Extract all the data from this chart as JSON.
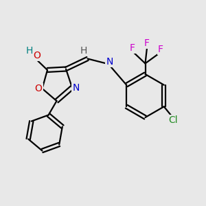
{
  "background_color": "#e8e8e8",
  "atom_colors": {
    "O": "#cc0000",
    "N": "#0000cc",
    "Cl": "#228B22",
    "F": "#cc00cc",
    "H_teal": "#008080",
    "H_gray": "#555555",
    "C": "#000000"
  },
  "bond_color": "#000000",
  "bond_width": 1.6,
  "figsize": [
    3.0,
    3.0
  ],
  "dpi": 100,
  "font_size": 10
}
